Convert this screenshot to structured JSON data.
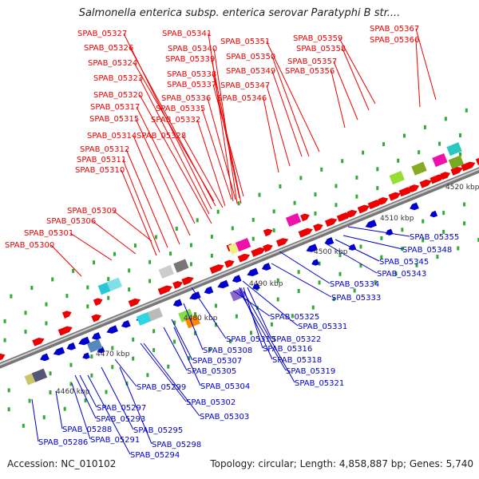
{
  "title": "Salmonella enterica subsp. enterica serovar Paratyphi B str....",
  "footer": {
    "accession": "Accession: NC_010102",
    "summary": "Topology: circular; Length: 4,858,887 bp; Genes: 5,740"
  },
  "colors": {
    "forward": "#ee0000",
    "reverse": "#0000cc",
    "backbone": "#999999",
    "tick": "#33aa33"
  },
  "tick_labels": [
    "4460 kbp",
    "4470 kbp",
    "4480 kbp",
    "4490 kbp",
    "4500 kbp",
    "4510 kbp",
    "4520 kbp"
  ],
  "forward_labels": [
    "SPAB_05327",
    "SPAB_05326",
    "SPAB_05324",
    "SPAB_05323",
    "SPAB_05320",
    "SPAB_05317",
    "SPAB_05315",
    "SPAB_05314",
    "SPAB_05312",
    "SPAB_05311",
    "SPAB_05310",
    "SPAB_05309",
    "SPAB_05306",
    "SPAB_05301",
    "SPAB_05300",
    "SPAB_05341",
    "SPAB_05340",
    "SPAB_05339",
    "SPAB_05338",
    "SPAB_05337",
    "SPAB_05336",
    "SPAB_05335",
    "SPAB_05332",
    "SPAB_05328",
    "SPAB_05351",
    "SPAB_05350",
    "SPAB_05349",
    "SPAB_05347",
    "SPAB_05346",
    "SPAB_05359",
    "SPAB_05358",
    "SPAB_05357",
    "SPAB_05356",
    "SPAB_05367",
    "SPAB_05366"
  ],
  "reverse_labels": [
    "SPAB_05355",
    "SPAB_05348",
    "SPAB_05345",
    "SPAB_05343",
    "SPAB_05334",
    "SPAB_05333",
    "SPAB_05325",
    "SPAB_05331",
    "SPAB_05313",
    "SPAB_05322",
    "SPAB_05308",
    "SPAB_05316",
    "SPAB_05307",
    "SPAB_05318",
    "SPAB_05305",
    "SPAB_05319",
    "SPAB_05304",
    "SPAB_05321",
    "SPAB_05299",
    "SPAB_05302",
    "SPAB_05297",
    "SPAB_05303",
    "SPAB_05293",
    "SPAB_05295",
    "SPAB_05288",
    "SPAB_05291",
    "SPAB_05298",
    "SPAB_05286",
    "SPAB_05294"
  ]
}
